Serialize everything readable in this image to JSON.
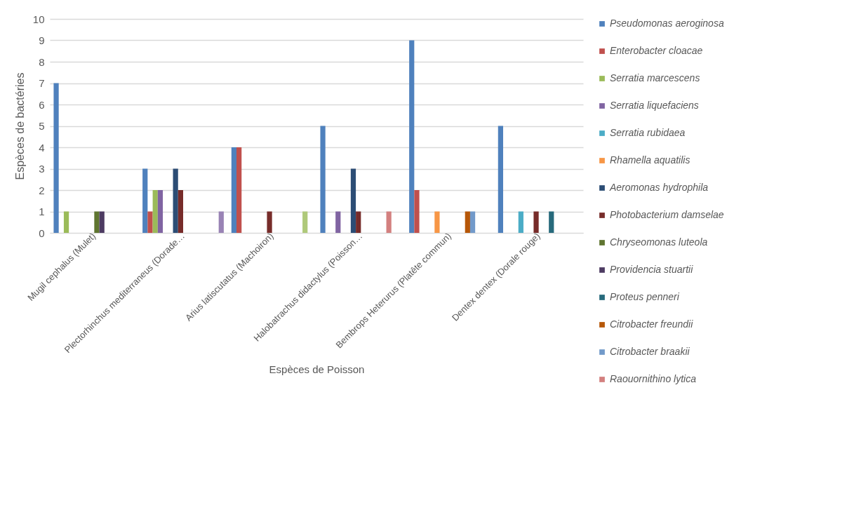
{
  "chart_data": {
    "type": "bar",
    "xlabel": "Espèces de Poisson",
    "ylabel": "Espèces de bactéries",
    "categories": [
      "Mugil cephalus (Mulet)",
      "Plectorhinchus mediterraneus (Dorade…",
      "Arius latiscutatus (Machoiron)",
      "Halobatrachus didactylus (Poisson…",
      "Bembrops Heterurus (Platête commun)",
      "Dentex dentex (Dorale rouge)"
    ],
    "series": [
      {
        "name": "Pseudomonas aeroginosa",
        "color": "#4f81bd",
        "values": [
          7,
          3,
          4,
          5,
          9,
          5
        ]
      },
      {
        "name": "Enterobacter cloacae",
        "color": "#c0504d",
        "values": [
          null,
          1,
          4,
          null,
          2,
          null
        ]
      },
      {
        "name": "Serratia marcescens",
        "color": "#9bbb59",
        "values": [
          1,
          2,
          null,
          null,
          null,
          null
        ]
      },
      {
        "name": "Serratia liquefaciens",
        "color": "#8064a2",
        "values": [
          null,
          2,
          null,
          1,
          null,
          null
        ]
      },
      {
        "name": "Serratia rubidaea",
        "color": "#4bacc6",
        "values": [
          null,
          null,
          null,
          null,
          null,
          1
        ]
      },
      {
        "name": "Rhamella aquatilis",
        "color": "#f79646",
        "values": [
          null,
          null,
          null,
          null,
          1,
          null
        ]
      },
      {
        "name": "Aeromonas hydrophila",
        "color": "#2c4d75",
        "values": [
          null,
          3,
          null,
          3,
          null,
          null
        ]
      },
      {
        "name": "Photobacterium damselae",
        "color": "#772c2a",
        "values": [
          null,
          2,
          1,
          1,
          null,
          1
        ]
      },
      {
        "name": "Chryseomonas luteola",
        "color": "#5f7530",
        "values": [
          1,
          null,
          null,
          null,
          null,
          null
        ]
      },
      {
        "name": "Providencia stuartii",
        "color": "#4d3b62",
        "values": [
          1,
          null,
          null,
          null,
          null,
          null
        ]
      },
      {
        "name": "Proteus penneri",
        "color": "#276a7c",
        "values": [
          null,
          null,
          null,
          null,
          null,
          1
        ]
      },
      {
        "name": "Citrobacter freundii",
        "color": "#b65708",
        "values": [
          null,
          null,
          null,
          null,
          1,
          null
        ]
      },
      {
        "name": "Citrobacter braakii",
        "color": "#729aca",
        "values": [
          null,
          null,
          null,
          null,
          1,
          null
        ]
      },
      {
        "name": "Raouornithino lytica",
        "color": "#d3807f",
        "values": [
          null,
          null,
          null,
          1,
          null,
          null
        ]
      },
      {
        "color": "#afc97a",
        "values": [
          null,
          null,
          1,
          null,
          null,
          null
        ]
      },
      {
        "color": "#9983b5",
        "values": [
          null,
          1,
          null,
          null,
          null,
          null
        ]
      }
    ],
    "ylim": [
      0,
      10
    ],
    "yticks": [
      0,
      1,
      2,
      3,
      4,
      5,
      6,
      7,
      8,
      9,
      10
    ],
    "grid": true,
    "legend": "right"
  }
}
